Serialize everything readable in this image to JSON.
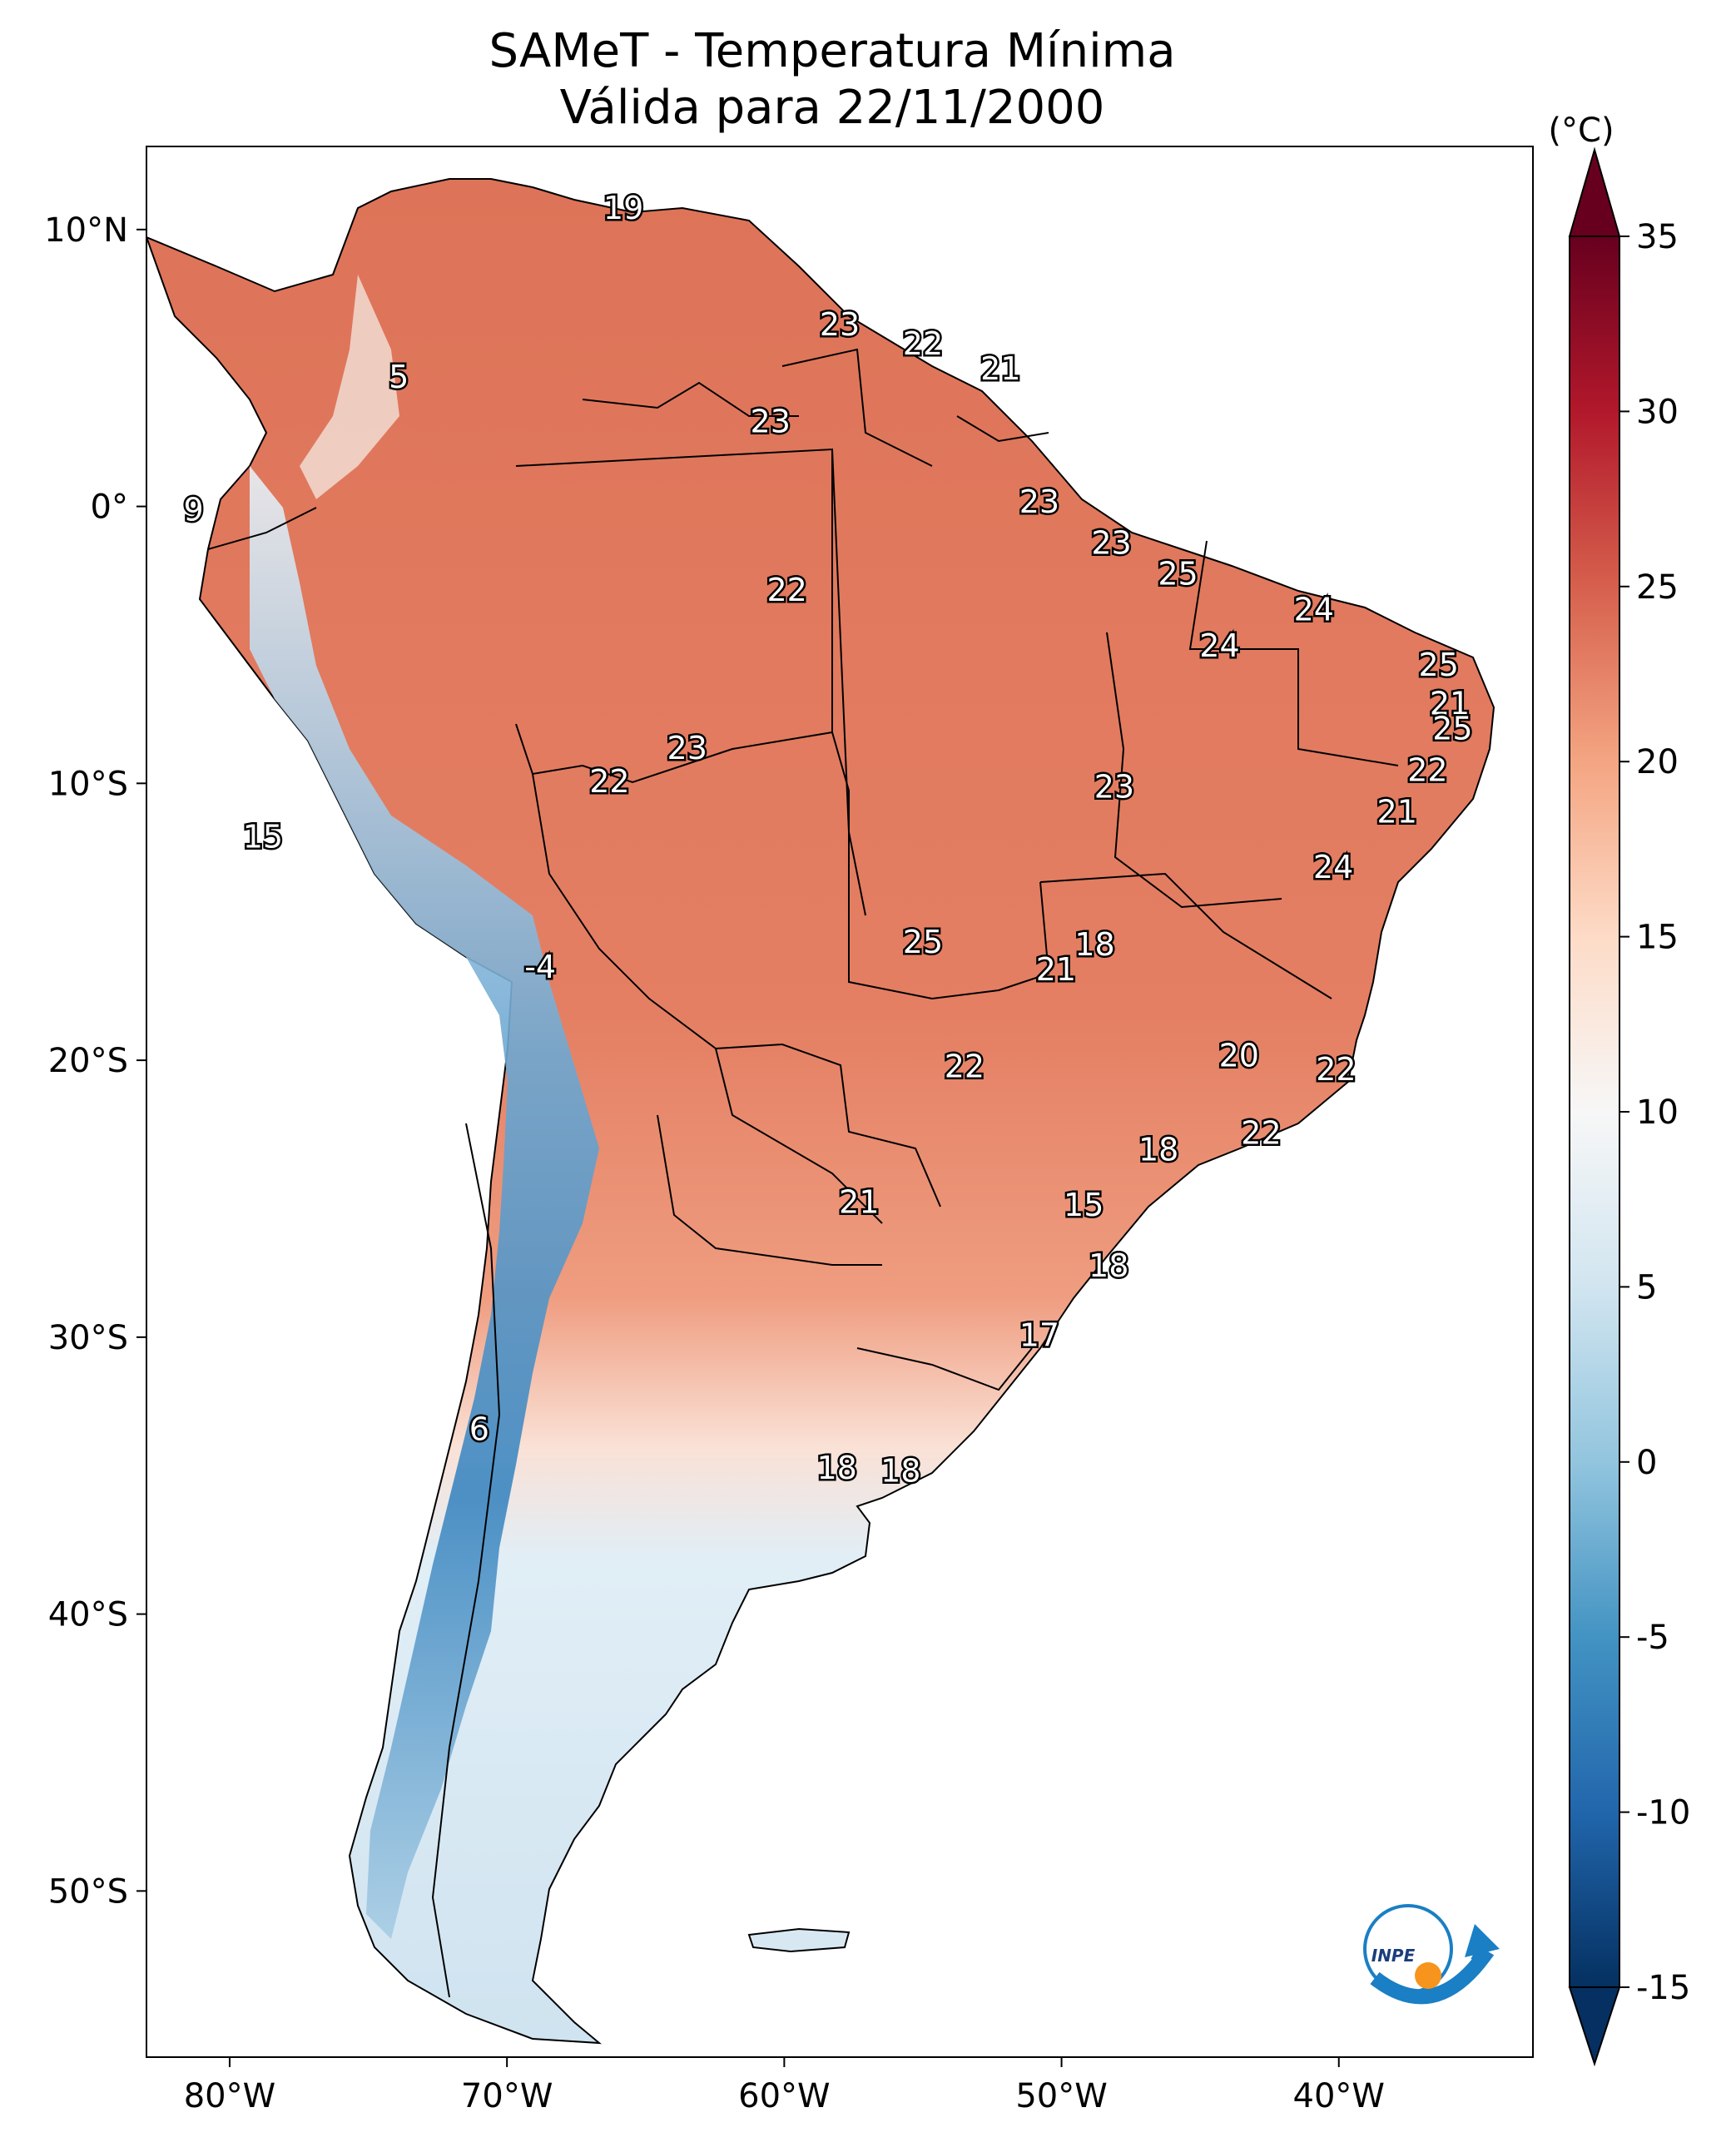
{
  "figure": {
    "title_line1": "SAMeT - Temperatura Mínima",
    "title_line2": "Válida para 22/11/2000"
  },
  "map": {
    "lon_range": [
      -83,
      -33
    ],
    "lat_range": [
      -56,
      13
    ],
    "x_ticks": [
      {
        "lon": -80,
        "label": "80°W"
      },
      {
        "lon": -70,
        "label": "70°W"
      },
      {
        "lon": -60,
        "label": "60°W"
      },
      {
        "lon": -50,
        "label": "50°W"
      },
      {
        "lon": -40,
        "label": "40°W"
      }
    ],
    "y_ticks": [
      {
        "lat": 10,
        "label": "10°N"
      },
      {
        "lat": 0,
        "label": "0°"
      },
      {
        "lat": -10,
        "label": "10°S"
      },
      {
        "lat": -20,
        "label": "20°S"
      },
      {
        "lat": -30,
        "label": "30°S"
      },
      {
        "lat": -40,
        "label": "40°S"
      },
      {
        "lat": -50,
        "label": "50°S"
      }
    ],
    "annotations": [
      {
        "lon": -65.8,
        "lat": 10.7,
        "label": "19"
      },
      {
        "lon": -73.9,
        "lat": 4.6,
        "label": "5"
      },
      {
        "lon": -58.0,
        "lat": 6.5,
        "label": "23"
      },
      {
        "lon": -55.0,
        "lat": 5.8,
        "label": "22"
      },
      {
        "lon": -52.2,
        "lat": 4.9,
        "label": "21"
      },
      {
        "lon": -60.5,
        "lat": 3.0,
        "label": "23"
      },
      {
        "lon": -81.3,
        "lat": -0.2,
        "label": "9"
      },
      {
        "lon": -50.8,
        "lat": 0.1,
        "label": "23"
      },
      {
        "lon": -48.2,
        "lat": -1.4,
        "label": "23"
      },
      {
        "lon": -59.9,
        "lat": -3.1,
        "label": "22"
      },
      {
        "lon": -45.8,
        "lat": -2.5,
        "label": "25"
      },
      {
        "lon": -40.9,
        "lat": -3.8,
        "label": "24"
      },
      {
        "lon": -44.3,
        "lat": -5.1,
        "label": "24"
      },
      {
        "lon": -36.4,
        "lat": -5.8,
        "label": "25"
      },
      {
        "lon": -36.0,
        "lat": -7.2,
        "label": "21"
      },
      {
        "lon": -35.9,
        "lat": -8.1,
        "label": "25"
      },
      {
        "lon": -63.5,
        "lat": -8.8,
        "label": "23"
      },
      {
        "lon": -36.8,
        "lat": -9.6,
        "label": "22"
      },
      {
        "lon": -66.3,
        "lat": -10.0,
        "label": "22"
      },
      {
        "lon": -48.1,
        "lat": -10.2,
        "label": "23"
      },
      {
        "lon": -37.9,
        "lat": -11.1,
        "label": "21"
      },
      {
        "lon": -40.2,
        "lat": -13.1,
        "label": "24"
      },
      {
        "lon": -78.8,
        "lat": -12.0,
        "label": "15"
      },
      {
        "lon": -55.0,
        "lat": -15.8,
        "label": "25"
      },
      {
        "lon": -48.8,
        "lat": -15.9,
        "label": "18"
      },
      {
        "lon": -50.2,
        "lat": -16.8,
        "label": "21"
      },
      {
        "lon": -68.8,
        "lat": -16.7,
        "label": "-4"
      },
      {
        "lon": -43.6,
        "lat": -19.9,
        "label": "20"
      },
      {
        "lon": -53.5,
        "lat": -20.3,
        "label": "22"
      },
      {
        "lon": -40.1,
        "lat": -20.4,
        "label": "22"
      },
      {
        "lon": -42.8,
        "lat": -22.7,
        "label": "22"
      },
      {
        "lon": -46.5,
        "lat": -23.3,
        "label": "18"
      },
      {
        "lon": -57.3,
        "lat": -25.2,
        "label": "21"
      },
      {
        "lon": -49.2,
        "lat": -25.3,
        "label": "15"
      },
      {
        "lon": -48.3,
        "lat": -27.5,
        "label": "18"
      },
      {
        "lon": -50.8,
        "lat": -30.0,
        "label": "17"
      },
      {
        "lon": -71.0,
        "lat": -33.4,
        "label": "6"
      },
      {
        "lon": -58.1,
        "lat": -34.8,
        "label": "18"
      },
      {
        "lon": -55.8,
        "lat": -34.9,
        "label": "18"
      }
    ]
  },
  "colorbar": {
    "unit_label": "(°C)",
    "min": -15,
    "max": 35,
    "extend": "both",
    "colormap": "RdBu_r",
    "ticks": [
      "35",
      "30",
      "25",
      "20",
      "15",
      "10",
      "5",
      "0",
      "-5",
      "-10",
      "-15"
    ]
  },
  "logo": {
    "text": "INPE",
    "arrow_color": "#1a7fc4",
    "dot_color": "#f7941d"
  }
}
